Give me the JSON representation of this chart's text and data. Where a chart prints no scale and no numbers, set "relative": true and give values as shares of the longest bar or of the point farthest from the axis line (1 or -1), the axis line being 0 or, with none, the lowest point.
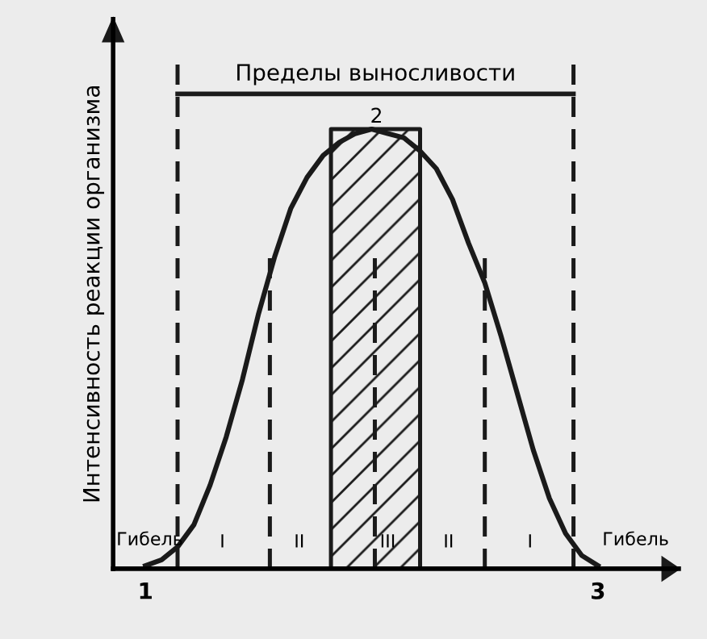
{
  "chart_data": {
    "type": "line",
    "relative": true,
    "ylabel": "Интенсивность реакции организма",
    "categories": [
      null,
      null,
      null,
      null,
      null,
      null,
      null,
      null,
      null,
      null,
      null,
      null,
      null,
      null,
      null,
      null,
      null,
      null,
      null,
      null,
      null,
      null,
      null,
      null,
      null,
      null,
      null,
      null,
      null
    ],
    "series": [
      {
        "color": "#1a1a1a",
        "values": [
          0.007,
          0.02,
          0.05,
          0.1,
          0.19,
          0.3,
          0.43,
          0.58,
          0.71,
          0.82,
          0.89,
          0.94,
          0.97,
          0.99,
          1.0,
          0.99,
          0.98,
          0.95,
          0.91,
          0.84,
          0.74,
          0.65,
          0.53,
          0.4,
          0.27,
          0.16,
          0.08,
          0.03,
          0.007
        ]
      }
    ],
    "marker": "none",
    "line_style": "solid",
    "annotations": [
      "Пределы выносливости",
      "Гибель",
      "Гибель",
      "1",
      "2",
      "3",
      "I",
      "II",
      "III",
      "II",
      "I"
    ]
  }
}
